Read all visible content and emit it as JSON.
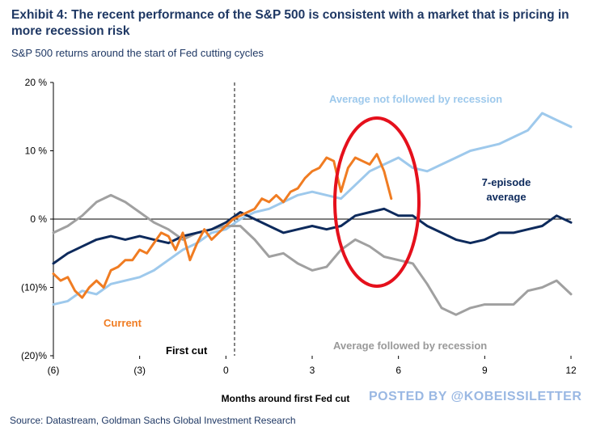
{
  "header": {
    "title": "Exhibit 4: The recent performance of the S&P 500 is consistent with a market that is pricing in more recession risk",
    "subtitle": "S&P 500 returns around the start of Fed cutting cycles"
  },
  "footer": {
    "source": "Source: Datastream, Goldman Sachs Global Investment Research",
    "watermark": "POSTED BY @KOBEISSILETTER"
  },
  "colors": {
    "current": "#f07c22",
    "avg_not_recession": "#9ec9ec",
    "avg_recession": "#a0a0a0",
    "seven_episode": "#0d2a5c",
    "highlight_ellipse": "#e5101c"
  },
  "chart_data": {
    "type": "line",
    "xlabel": "Months  around first  Fed cut",
    "ylabel": "",
    "xlim": [
      -6,
      12
    ],
    "ylim": [
      -20,
      20
    ],
    "x_ticks": [
      -6,
      -3,
      0,
      3,
      6,
      9,
      12
    ],
    "x_tick_labels": [
      "(6)",
      "(3)",
      "0",
      "3",
      "6",
      "9",
      "12"
    ],
    "y_ticks": [
      20,
      10,
      0,
      -10,
      -20
    ],
    "y_tick_labels": [
      "20 %",
      "10 %",
      "0 %",
      "(10)%",
      "(20)%"
    ],
    "first_cut_x": 0.3,
    "annotations": {
      "first_cut": "First cut",
      "current": "Current",
      "avg_not_recession": "Average not followed by recession",
      "avg_recession": "Average followed by recession",
      "seven_episode_line1": "7-episode",
      "seven_episode_line2": "average"
    },
    "series": [
      {
        "name": "Average not followed by recession",
        "x": [
          -6,
          -5.5,
          -5,
          -4.5,
          -4,
          -3.5,
          -3,
          -2.5,
          -2,
          -1.5,
          -1,
          -0.5,
          0,
          0.5,
          1,
          1.5,
          2,
          2.5,
          3,
          3.5,
          4,
          4.5,
          5,
          5.5,
          6,
          6.5,
          7,
          7.5,
          8,
          8.5,
          9,
          9.5,
          10,
          10.5,
          11,
          11.5,
          12
        ],
        "values": [
          -12.5,
          -12,
          -10.5,
          -11,
          -9.5,
          -9,
          -8.5,
          -7.5,
          -6,
          -4.5,
          -3.5,
          -2,
          -1.5,
          0,
          1,
          1.5,
          2.5,
          3.5,
          4,
          3.5,
          3,
          5,
          7,
          8,
          9,
          7.5,
          7,
          8,
          9,
          10,
          10.5,
          11,
          12,
          13,
          15.5,
          14.5,
          13.5
        ]
      },
      {
        "name": "Average followed by recession",
        "x": [
          -6,
          -5.5,
          -5,
          -4.5,
          -4,
          -3.5,
          -3,
          -2.5,
          -2,
          -1.5,
          -1,
          -0.5,
          0,
          0.5,
          1,
          1.5,
          2,
          2.5,
          3,
          3.5,
          4,
          4.5,
          5,
          5.5,
          6,
          6.5,
          7,
          7.5,
          8,
          8.5,
          9,
          9.5,
          10,
          10.5,
          11,
          11.5,
          12
        ],
        "values": [
          -2,
          -1,
          0.5,
          2.5,
          3.5,
          2.5,
          1,
          -0.5,
          -1.5,
          -3,
          -2,
          -1.5,
          -1,
          -1,
          -3,
          -5.5,
          -5,
          -6.5,
          -7.5,
          -7,
          -4.5,
          -3,
          -4,
          -5.5,
          -6,
          -6.5,
          -9.5,
          -13,
          -14,
          -13,
          -12.5,
          -12.5,
          -12.5,
          -10.5,
          -10,
          -9,
          -11
        ]
      },
      {
        "name": "7-episode average",
        "x": [
          -6,
          -5.5,
          -5,
          -4.5,
          -4,
          -3.5,
          -3,
          -2.5,
          -2,
          -1.5,
          -1,
          -0.5,
          0,
          0.5,
          1,
          1.5,
          2,
          2.5,
          3,
          3.5,
          4,
          4.5,
          5,
          5.5,
          6,
          6.5,
          7,
          7.5,
          8,
          8.5,
          9,
          9.5,
          10,
          10.5,
          11,
          11.5,
          12
        ],
        "values": [
          -6.5,
          -5,
          -4,
          -3,
          -2.5,
          -3,
          -2.5,
          -3,
          -3.5,
          -2.5,
          -2,
          -1.5,
          -0.5,
          1,
          0,
          -1,
          -2,
          -1.5,
          -1,
          -1.5,
          -1,
          0.5,
          1,
          1.5,
          0.5,
          0.5,
          -1,
          -2,
          -3,
          -3.5,
          -3,
          -2,
          -2,
          -1.5,
          -1,
          0.5,
          -0.5
        ]
      },
      {
        "name": "Current",
        "x": [
          -6,
          -5.75,
          -5.5,
          -5.25,
          -5,
          -4.75,
          -4.5,
          -4.25,
          -4,
          -3.75,
          -3.5,
          -3.25,
          -3,
          -2.75,
          -2.5,
          -2.25,
          -2,
          -1.75,
          -1.5,
          -1.25,
          -1,
          -0.75,
          -0.5,
          -0.25,
          0,
          0.25,
          0.5,
          0.75,
          1,
          1.25,
          1.5,
          1.75,
          2,
          2.25,
          2.5,
          2.75,
          3,
          3.25,
          3.5,
          3.75,
          4,
          4.25,
          4.5,
          4.75,
          5,
          5.25,
          5.5,
          5.75
        ],
        "values": [
          -8,
          -9,
          -8.5,
          -10.5,
          -11.5,
          -10,
          -9,
          -10,
          -7.5,
          -7,
          -6,
          -6,
          -4.5,
          -5,
          -3.5,
          -2,
          -2.5,
          -4.5,
          -2,
          -6,
          -3.5,
          -1.5,
          -3,
          -2,
          -1,
          0,
          0.5,
          1,
          1.5,
          3,
          2.5,
          3.5,
          2.5,
          4,
          4.5,
          6,
          7,
          7.5,
          9,
          8.5,
          4,
          7.5,
          9,
          8.5,
          8,
          9.5,
          7,
          3
        ]
      }
    ]
  }
}
